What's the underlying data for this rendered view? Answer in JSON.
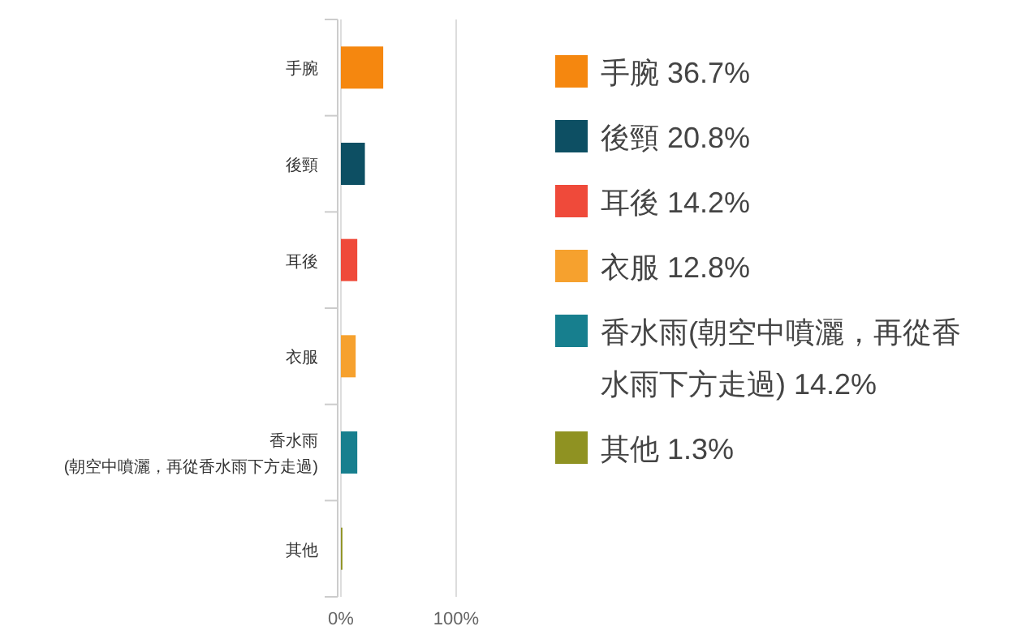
{
  "chart_data": {
    "type": "bar",
    "orientation": "horizontal",
    "categories": [
      "手腕",
      "後頸",
      "耳後",
      "衣服",
      "香水雨(朝空中噴灑，再從香水雨下方走過)",
      "其他"
    ],
    "series": [
      {
        "name": "手腕 36.7%",
        "color": "#f5870f",
        "values": [
          36.7,
          null,
          null,
          null,
          null,
          null
        ]
      },
      {
        "name": "後頸 20.8%",
        "color": "#0d4f63",
        "values": [
          null,
          20.8,
          null,
          null,
          null,
          null
        ]
      },
      {
        "name": "耳後 14.2%",
        "color": "#ef4a3a",
        "values": [
          null,
          null,
          14.2,
          null,
          null,
          null
        ]
      },
      {
        "name": "衣服 12.8%",
        "color": "#f6a12e",
        "values": [
          null,
          null,
          null,
          12.8,
          null,
          null
        ]
      },
      {
        "name": "香水雨(朝空中噴灑，再從香水雨下方走過) 14.2%",
        "color": "#177f8e",
        "values": [
          null,
          null,
          null,
          null,
          14.2,
          null
        ]
      },
      {
        "name": "其他 1.3%",
        "color": "#8f9222",
        "values": [
          null,
          null,
          null,
          null,
          null,
          1.3
        ]
      }
    ],
    "xlim": [
      0,
      100
    ],
    "xticks": [
      {
        "value": 0,
        "label": "0%"
      },
      {
        "value": 100,
        "label": "100%"
      }
    ],
    "grid": "x",
    "legend": "right"
  }
}
